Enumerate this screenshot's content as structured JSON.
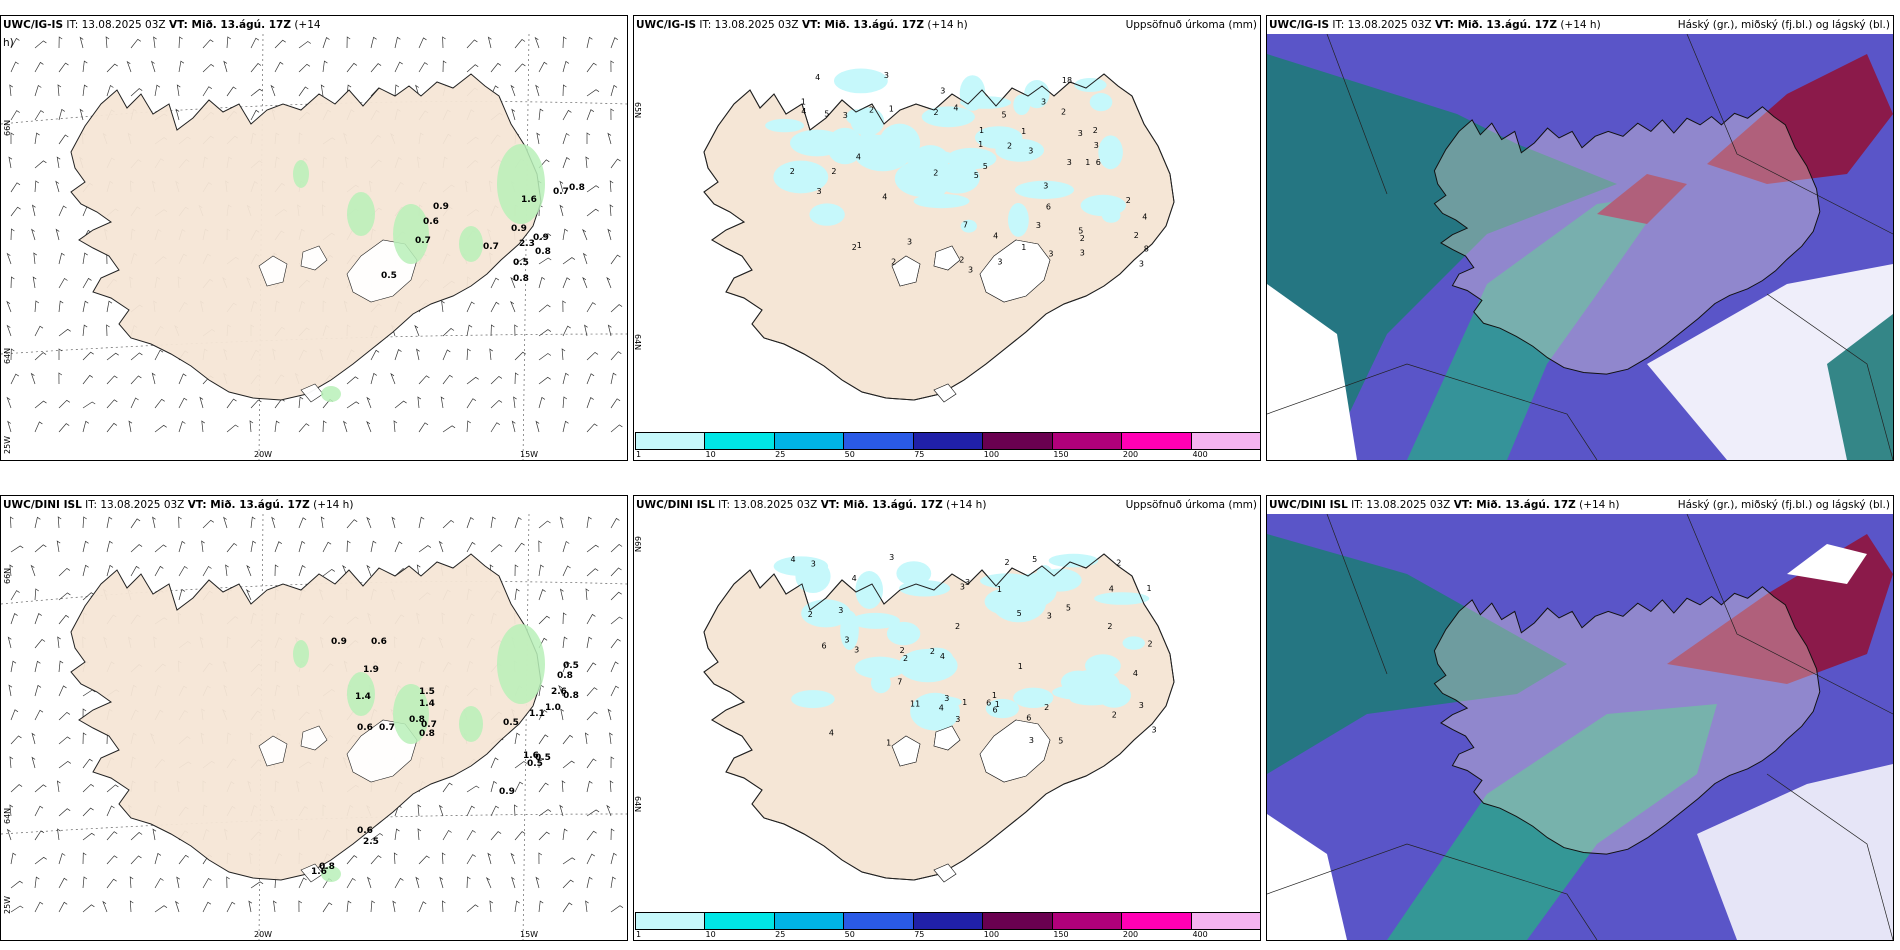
{
  "colors": {
    "land": "#f5e6d6",
    "ocean": "#ffffff",
    "glacier": "#ffffff",
    "precip_green": "#b8f0b8",
    "accum_light": "#c6f8fb",
    "cloud_high": "#1f7a7a",
    "cloud_mid": "#5a55c8",
    "cloud_low": "#8b1a4a"
  },
  "axis_labels": {
    "lat66": "66N",
    "lat64": "64N",
    "lon25": "25W",
    "lon20": "20W",
    "lon15": "15W"
  },
  "panels": [
    {
      "id": "p1",
      "model": "UWC/IG-IS",
      "it": "IT: 13.08.2025 03Z",
      "vt": "VT: Mið. 13.ágú. 17Z",
      "lead": "(+14",
      "lead_wrap": "h)",
      "right_title": ""
    },
    {
      "id": "p2",
      "model": "UWC/IG-IS",
      "it": "IT: 13.08.2025 03Z",
      "vt": "VT: Mið. 13.ágú. 17Z",
      "lead": "(+14 h)",
      "right_title": "Uppsöfnuð úrkoma (mm)"
    },
    {
      "id": "p3",
      "model": "UWC/IG-IS",
      "it": "IT: 13.08.2025 03Z",
      "vt": "VT: Mið. 13.ágú. 17Z",
      "lead": "(+14 h)",
      "right_title": "Háský (gr.), miðský (fj.bl.) og lágský (bl.)"
    },
    {
      "id": "p4",
      "model": "UWC/DINI ISL",
      "it": "IT: 13.08.2025 03Z",
      "vt": "VT: Mið. 13.ágú. 17Z",
      "lead": "(+14 h)",
      "right_title": ""
    },
    {
      "id": "p5",
      "model": "UWC/DINI ISL",
      "it": "IT: 13.08.2025 03Z",
      "vt": "VT: Mið. 13.ágú. 17Z",
      "lead": "(+14 h)",
      "right_title": "Uppsöfnuð úrkoma (mm)"
    },
    {
      "id": "p6",
      "model": "UWC/DINI ISL",
      "it": "IT: 13.08.2025 03Z",
      "vt": "VT: Mið. 13.ágú. 17Z",
      "lead": "(+14 h)",
      "right_title": "Háský (gr.), miðský (fj.bl.) og lágský (bl.)"
    }
  ],
  "colorbar": {
    "colors": [
      "#c6f8fb",
      "#00e6e6",
      "#00b4e6",
      "#2a5ae6",
      "#2020a8",
      "#6a0050",
      "#b0007a",
      "#ff00b4",
      "#f5b4f0"
    ],
    "ticks": [
      "1",
      "10",
      "25",
      "50",
      "75",
      "100",
      "150",
      "200",
      "400"
    ]
  },
  "precip_labels_p1": [
    "0.7",
    "0.9",
    "0.6",
    "1.6",
    "0.8",
    "0.9",
    "0.7",
    "0.9",
    "0.7",
    "2.3",
    "0.8",
    "0.5",
    "0.5",
    "0.8"
  ],
  "precip_labels_p4": [
    "0.9",
    "0.6",
    "1.9",
    "1.4",
    "0.7",
    "1.4",
    "0.8",
    "0.6",
    "0.8",
    "1.5",
    "0.7",
    "1.0",
    "0.5",
    "0.5",
    "2.6",
    "0.8",
    "0.8",
    "1.1",
    "0.5",
    "1.6",
    "0.5",
    "0.9",
    "0.6",
    "2.5",
    "0.8",
    "1.6"
  ],
  "accum_labels_p2": [
    "1",
    "2",
    "1",
    "2",
    "2",
    "4",
    "3",
    "3",
    "4",
    "3",
    "5",
    "5",
    "3",
    "5",
    "8",
    "2",
    "4",
    "3",
    "4",
    "6",
    "4",
    "7",
    "3",
    "2",
    "3",
    "3",
    "4",
    "3",
    "5",
    "3",
    "2",
    "2",
    "18",
    "6",
    "4",
    "2",
    "3",
    "1",
    "3",
    "3",
    "5",
    "2",
    "3",
    "2",
    "1",
    "3",
    "2",
    "2",
    "3",
    "1",
    "1",
    "2",
    "2",
    "3",
    "1",
    "1"
  ],
  "accum_labels_p5": [
    "2",
    "3",
    "1",
    "2",
    "2",
    "3",
    "5",
    "3",
    "4",
    "6",
    "3",
    "2",
    "5",
    "6",
    "3",
    "4",
    "3",
    "4",
    "11",
    "3",
    "1",
    "3",
    "7",
    "3",
    "4",
    "2",
    "3",
    "4",
    "2",
    "6",
    "1",
    "2",
    "5",
    "1",
    "3",
    "4",
    "2",
    "1",
    "2",
    "2",
    "1",
    "6",
    "5",
    "4",
    "3",
    "2",
    "3",
    "1"
  ]
}
